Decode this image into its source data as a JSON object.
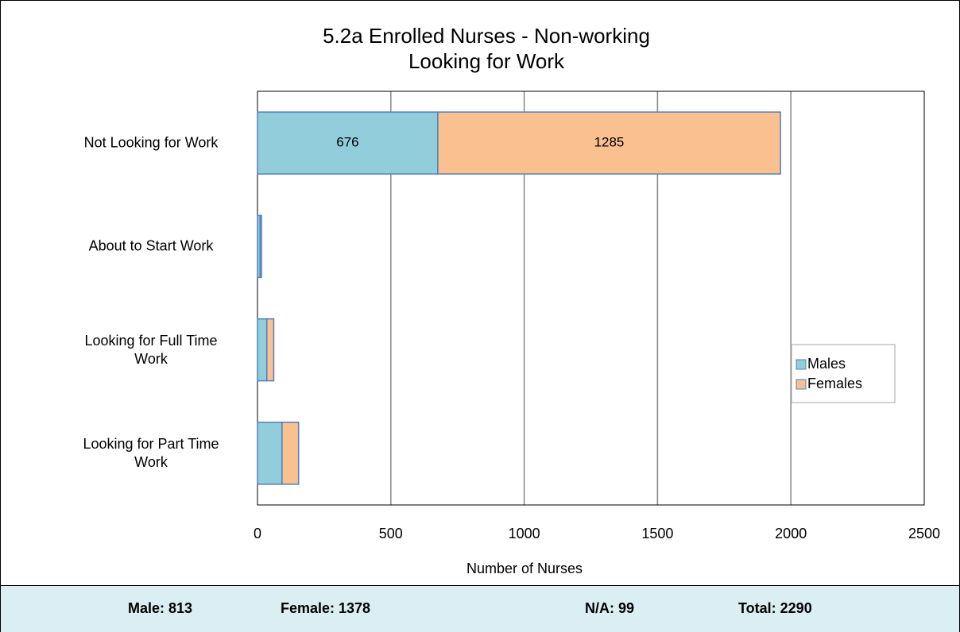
{
  "chart_data": {
    "type": "bar",
    "orientation": "horizontal",
    "stacked": true,
    "title": "5.2a Enrolled Nurses  - Non-working Looking for Work",
    "xlabel": "Number of Nurses",
    "categories": [
      "Not Looking for Work",
      "About to Start Work",
      "Looking for Full Time Work",
      "Looking for Part Time Work"
    ],
    "series": [
      {
        "name": "Males",
        "color": "#92cddc",
        "values": [
          676,
          10,
          35,
          92
        ]
      },
      {
        "name": "Females",
        "color": "#fac090",
        "values": [
          1285,
          5,
          26,
          62
        ]
      }
    ],
    "xlim": [
      0,
      2500
    ],
    "xticks": [
      0,
      500,
      1000,
      1500,
      2000,
      2500
    ],
    "grid": true,
    "legend": "right"
  },
  "footer": {
    "items": [
      "Male: 813",
      "Female: 1378",
      "N/A: 99",
      "Total: 2290"
    ]
  }
}
